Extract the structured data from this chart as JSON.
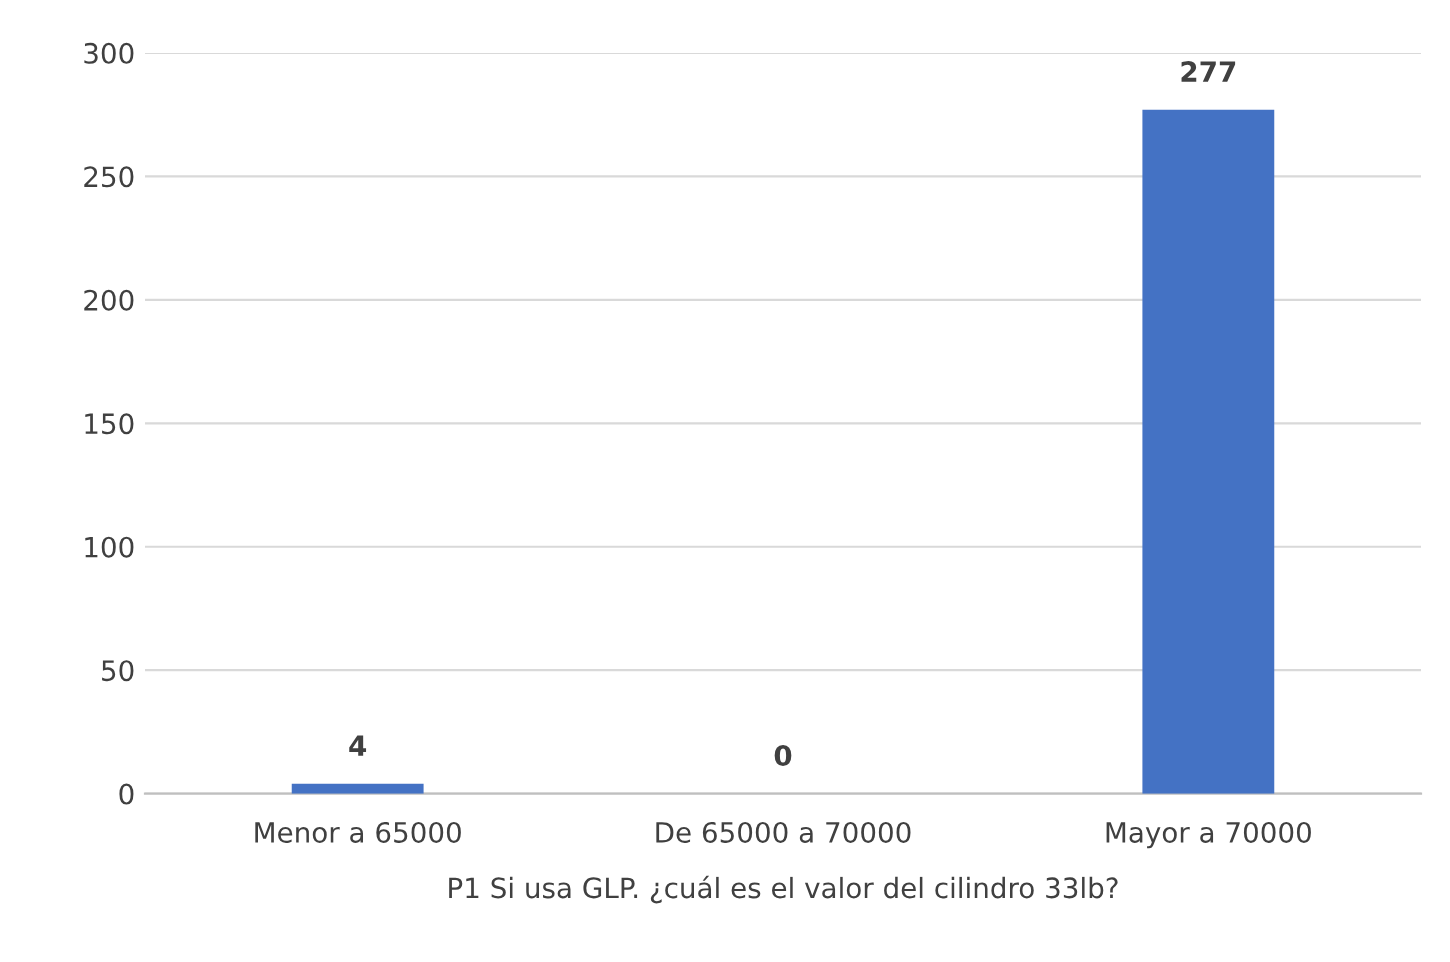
{
  "chart_data": {
    "type": "bar",
    "categories": [
      "Menor a 65000",
      "De 65000 a 70000",
      "Mayor a 70000"
    ],
    "values": [
      4,
      0,
      277
    ],
    "color": "#4472c4",
    "xlabel": "P1 Si usa GLP. ¿cuál es el valor del cilindro 33lb?",
    "ylim": [
      0,
      300
    ],
    "yticks": [
      0,
      50,
      100,
      150,
      200,
      250,
      300
    ],
    "grid": "y",
    "data_labels": true
  }
}
